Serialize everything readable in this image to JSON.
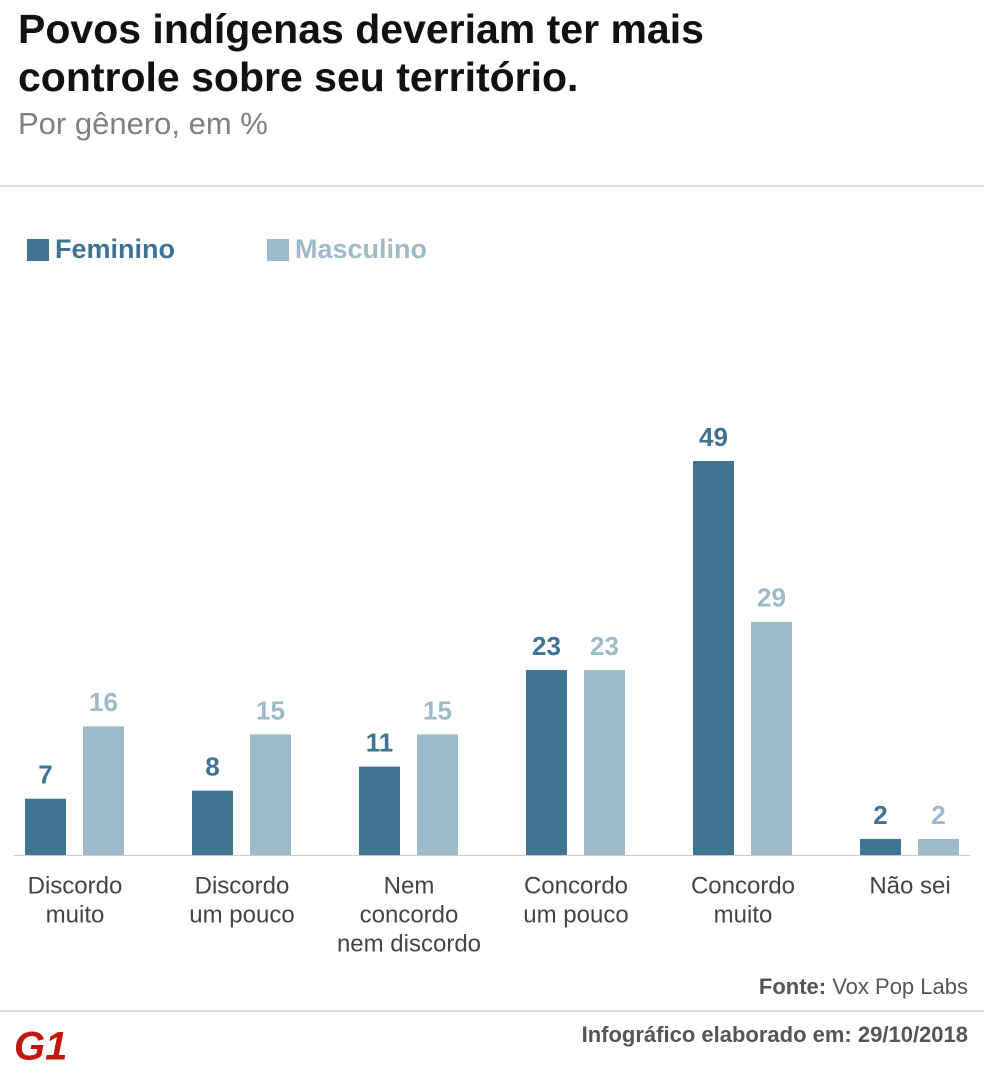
{
  "chart_data": {
    "type": "bar",
    "title": [
      "Povos indígenas deveriam ter mais",
      "controle sobre seu território."
    ],
    "subtitle": "Por gênero, em %",
    "categories": [
      [
        "Discordo",
        "muito"
      ],
      [
        "Discordo",
        "um pouco"
      ],
      [
        "Nem",
        "concordo",
        "nem discordo"
      ],
      [
        "Concordo",
        "um pouco"
      ],
      [
        "Concordo",
        "muito"
      ],
      [
        "Não sei"
      ]
    ],
    "series": [
      {
        "name": "Feminino",
        "color": "#3e7391",
        "values": [
          7,
          8,
          11,
          23,
          49,
          2
        ]
      },
      {
        "name": "Masculino",
        "color": "#9dbac9",
        "values": [
          16,
          15,
          15,
          23,
          29,
          2
        ]
      }
    ],
    "source_label": "Fonte:",
    "source": "Vox Pop Labs",
    "credit_label": "Infográfico elaborado em:",
    "date": "29/10/2018",
    "logo": "G1"
  }
}
